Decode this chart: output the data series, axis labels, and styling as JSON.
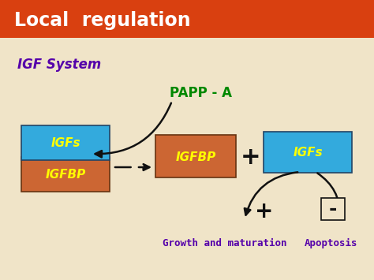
{
  "title": "Local  regulation",
  "title_bg_top": "#d94010",
  "title_bg_bot": "#c03010",
  "title_color": "#ffffff",
  "bg_color": "#f0e4c8",
  "igf_system_text": "IGF System",
  "igf_system_color": "#5500aa",
  "papp_text": "PAPP - A",
  "papp_color": "#008800",
  "box1_top_color": "#33aadd",
  "box1_bottom_color": "#cc6633",
  "box1_top_label": "IGFs",
  "box1_bottom_label": "IGFBP",
  "box2_color": "#cc6633",
  "box2_label": "IGFBP",
  "box3_color": "#33aadd",
  "box3_label": "IGFs",
  "label_color": "#ffff00",
  "plus_color": "#111111",
  "growth_text": "Growth and maturation",
  "apoptosis_text": "Apoptosis",
  "bottom_label_color": "#5500aa",
  "arrow_color": "#111111"
}
